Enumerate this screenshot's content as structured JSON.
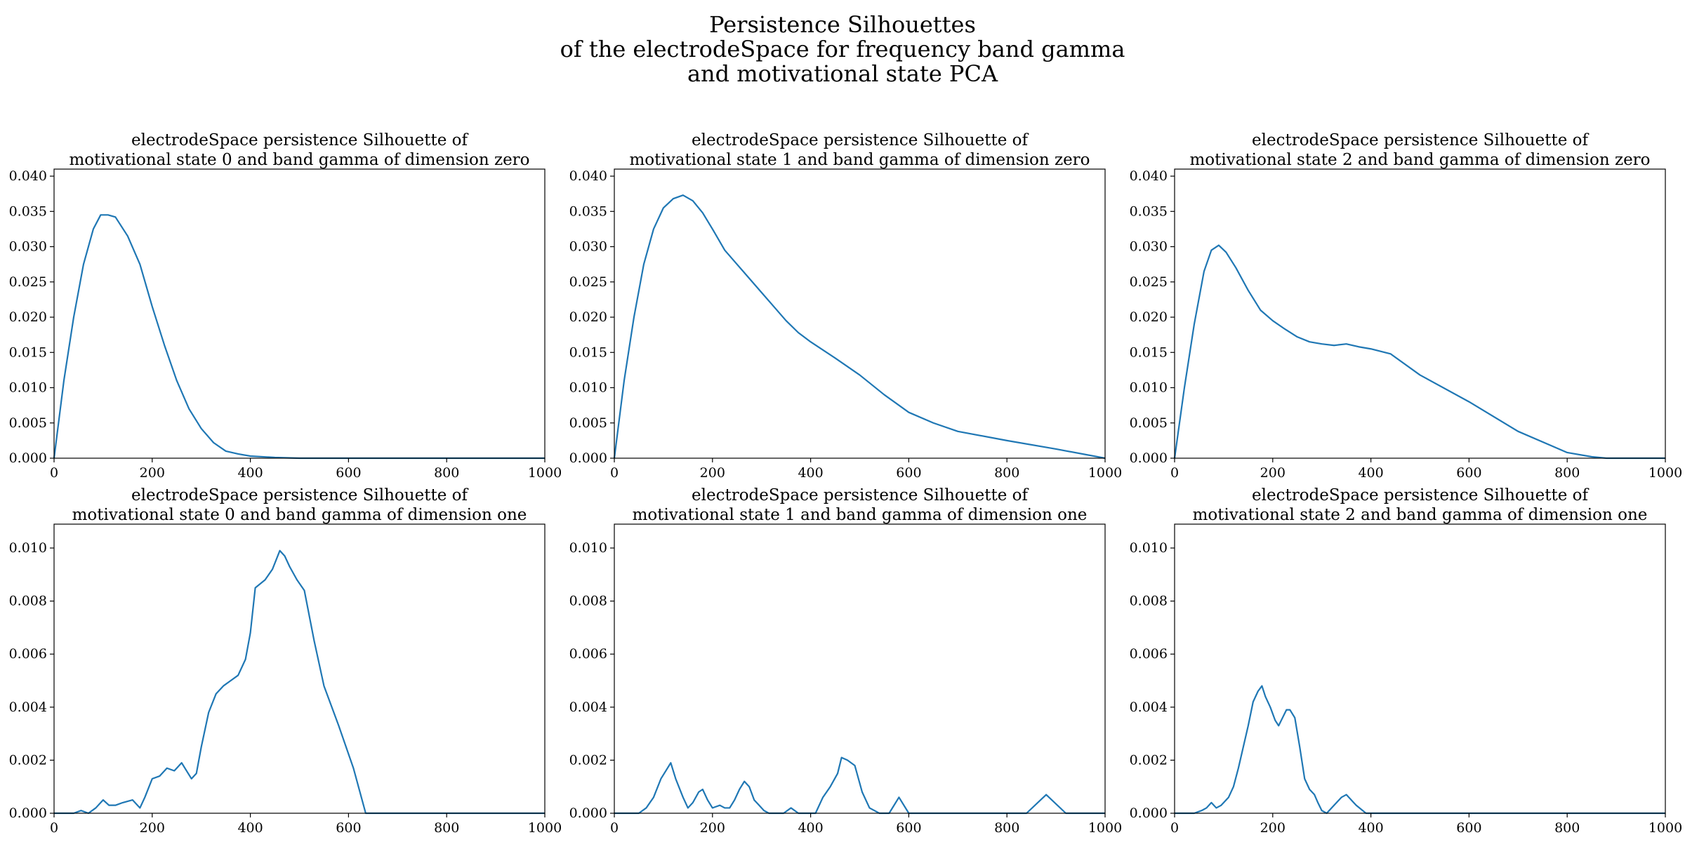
{
  "figure": {
    "suptitle_lines": [
      "Persistence Silhouettes",
      "of the electrodeSpace for frequency band gamma",
      "and motivational state PCA"
    ]
  },
  "colors": {
    "line": "#1f77b4",
    "axes": "#000000",
    "background": "#ffffff"
  },
  "chart_data": [
    {
      "type": "line",
      "title_lines": [
        "electrodeSpace persistence Silhouette of",
        "motivational state 0 and band gamma of dimension zero"
      ],
      "xlim": [
        0,
        1000
      ],
      "ylim": [
        0,
        0.041
      ],
      "xticks": [
        "0",
        "200",
        "400",
        "600",
        "800",
        "1000"
      ],
      "yticks": [
        "0.000",
        "0.005",
        "0.010",
        "0.015",
        "0.020",
        "0.025",
        "0.030",
        "0.035",
        "0.040"
      ],
      "grid": false,
      "series": [
        {
          "x": [
            0,
            20,
            40,
            60,
            80,
            95,
            110,
            125,
            150,
            175,
            200,
            225,
            250,
            275,
            300,
            325,
            350,
            375,
            400,
            450,
            500,
            600,
            800,
            1000
          ],
          "y": [
            0.0,
            0.011,
            0.02,
            0.0275,
            0.0325,
            0.0345,
            0.0345,
            0.0342,
            0.0315,
            0.0275,
            0.0215,
            0.016,
            0.011,
            0.007,
            0.0042,
            0.0022,
            0.001,
            0.0006,
            0.0003,
            0.0001,
            0.0,
            0.0,
            0.0,
            0.0
          ]
        }
      ]
    },
    {
      "type": "line",
      "title_lines": [
        "electrodeSpace persistence Silhouette of",
        "motivational state 1 and band gamma of dimension zero"
      ],
      "xlim": [
        0,
        1000
      ],
      "ylim": [
        0,
        0.041
      ],
      "xticks": [
        "0",
        "200",
        "400",
        "600",
        "800",
        "1000"
      ],
      "yticks": [
        "0.000",
        "0.005",
        "0.010",
        "0.015",
        "0.020",
        "0.025",
        "0.030",
        "0.035",
        "0.040"
      ],
      "grid": false,
      "series": [
        {
          "x": [
            0,
            20,
            40,
            60,
            80,
            100,
            120,
            140,
            160,
            180,
            200,
            225,
            250,
            275,
            300,
            325,
            350,
            375,
            400,
            450,
            500,
            550,
            600,
            650,
            700,
            800,
            900,
            1000
          ],
          "y": [
            0.0,
            0.011,
            0.02,
            0.0275,
            0.0325,
            0.0355,
            0.0368,
            0.0373,
            0.0365,
            0.0348,
            0.0325,
            0.0295,
            0.0275,
            0.0255,
            0.0235,
            0.0215,
            0.0195,
            0.0178,
            0.0165,
            0.0142,
            0.0118,
            0.009,
            0.0065,
            0.005,
            0.0038,
            0.0025,
            0.0013,
            0.0
          ]
        }
      ]
    },
    {
      "type": "line",
      "title_lines": [
        "electrodeSpace persistence Silhouette of",
        "motivational state 2 and band gamma of dimension zero"
      ],
      "xlim": [
        0,
        1000
      ],
      "ylim": [
        0,
        0.041
      ],
      "xticks": [
        "0",
        "200",
        "400",
        "600",
        "800",
        "1000"
      ],
      "yticks": [
        "0.000",
        "0.005",
        "0.010",
        "0.015",
        "0.020",
        "0.025",
        "0.030",
        "0.035",
        "0.040"
      ],
      "grid": false,
      "series": [
        {
          "x": [
            0,
            20,
            40,
            60,
            75,
            90,
            105,
            125,
            150,
            175,
            200,
            225,
            250,
            275,
            300,
            325,
            350,
            375,
            400,
            440,
            500,
            600,
            700,
            800,
            850,
            880,
            1000
          ],
          "y": [
            0.0,
            0.01,
            0.019,
            0.0265,
            0.0295,
            0.0302,
            0.0292,
            0.027,
            0.0238,
            0.021,
            0.0195,
            0.0183,
            0.0172,
            0.0165,
            0.0162,
            0.016,
            0.0162,
            0.0158,
            0.0155,
            0.0148,
            0.0118,
            0.008,
            0.0038,
            0.0008,
            0.0002,
            0.0,
            0.0
          ]
        }
      ]
    },
    {
      "type": "line",
      "title_lines": [
        "electrodeSpace persistence Silhouette of",
        "motivational state 0 and band gamma of dimension one"
      ],
      "xlim": [
        0,
        1000
      ],
      "ylim": [
        0,
        0.0109
      ],
      "xticks": [
        "0",
        "200",
        "400",
        "600",
        "800",
        "1000"
      ],
      "yticks": [
        "0.000",
        "0.002",
        "0.004",
        "0.006",
        "0.008",
        "0.010"
      ],
      "grid": false,
      "series": [
        {
          "x": [
            0,
            40,
            55,
            70,
            85,
            100,
            112,
            125,
            140,
            160,
            175,
            185,
            200,
            215,
            230,
            245,
            260,
            270,
            280,
            290,
            300,
            315,
            330,
            345,
            360,
            375,
            390,
            400,
            410,
            430,
            445,
            460,
            470,
            480,
            495,
            510,
            530,
            550,
            580,
            610,
            635,
            650,
            700,
            800,
            1000
          ],
          "y": [
            0.0,
            0.0,
            0.0001,
            0.0,
            0.0002,
            0.0005,
            0.0003,
            0.0003,
            0.0004,
            0.0005,
            0.0002,
            0.0006,
            0.0013,
            0.0014,
            0.0017,
            0.0016,
            0.0019,
            0.0016,
            0.0013,
            0.0015,
            0.0025,
            0.0038,
            0.0045,
            0.0048,
            0.005,
            0.0052,
            0.0058,
            0.0068,
            0.0085,
            0.0088,
            0.0092,
            0.0099,
            0.0097,
            0.0093,
            0.0088,
            0.0084,
            0.0065,
            0.0048,
            0.0033,
            0.0017,
            0.0,
            0.0,
            0.0,
            0.0,
            0.0
          ]
        }
      ]
    },
    {
      "type": "line",
      "title_lines": [
        "electrodeSpace persistence Silhouette of",
        "motivational state 1 and band gamma of dimension one"
      ],
      "xlim": [
        0,
        1000
      ],
      "ylim": [
        0,
        0.0109
      ],
      "xticks": [
        "0",
        "200",
        "400",
        "600",
        "800",
        "1000"
      ],
      "yticks": [
        "0.000",
        "0.002",
        "0.004",
        "0.006",
        "0.008",
        "0.010"
      ],
      "grid": false,
      "series": [
        {
          "x": [
            0,
            50,
            65,
            80,
            95,
            105,
            115,
            125,
            140,
            150,
            160,
            172,
            180,
            190,
            200,
            215,
            225,
            235,
            245,
            255,
            265,
            275,
            285,
            295,
            305,
            315,
            330,
            345,
            360,
            375,
            390,
            410,
            425,
            440,
            455,
            463,
            475,
            490,
            505,
            520,
            540,
            560,
            580,
            600,
            615,
            800,
            840,
            880,
            920,
            1000
          ],
          "y": [
            0.0,
            0.0,
            0.0002,
            0.0006,
            0.0013,
            0.0016,
            0.0019,
            0.0013,
            0.0006,
            0.0002,
            0.0004,
            0.0008,
            0.0009,
            0.0005,
            0.0002,
            0.0003,
            0.0002,
            0.0002,
            0.0005,
            0.0009,
            0.0012,
            0.001,
            0.0005,
            0.0003,
            0.0001,
            0.0,
            0.0,
            0.0,
            0.0002,
            0.0,
            0.0,
            0.0,
            0.0006,
            0.001,
            0.0015,
            0.0021,
            0.002,
            0.0018,
            0.0008,
            0.0002,
            0.0,
            0.0,
            0.0006,
            0.0,
            0.0,
            0.0,
            0.0,
            0.0007,
            0.0,
            0.0
          ]
        }
      ]
    },
    {
      "type": "line",
      "title_lines": [
        "electrodeSpace persistence Silhouette of",
        "motivational state 2 and band gamma of dimension one"
      ],
      "xlim": [
        0,
        1000
      ],
      "ylim": [
        0,
        0.0109
      ],
      "xticks": [
        "0",
        "200",
        "400",
        "600",
        "800",
        "1000"
      ],
      "yticks": [
        "0.000",
        "0.002",
        "0.004",
        "0.006",
        "0.008",
        "0.010"
      ],
      "grid": false,
      "series": [
        {
          "x": [
            0,
            40,
            55,
            65,
            75,
            85,
            95,
            110,
            120,
            130,
            140,
            150,
            160,
            170,
            178,
            185,
            195,
            205,
            212,
            220,
            228,
            235,
            245,
            255,
            265,
            275,
            285,
            292,
            300,
            310,
            325,
            340,
            350,
            370,
            390,
            460,
            480,
            1000
          ],
          "y": [
            0.0,
            0.0,
            0.0001,
            0.0002,
            0.0004,
            0.0002,
            0.0003,
            0.0006,
            0.001,
            0.0017,
            0.0025,
            0.0033,
            0.0042,
            0.0046,
            0.0048,
            0.0044,
            0.004,
            0.0035,
            0.0033,
            0.0036,
            0.0039,
            0.0039,
            0.0036,
            0.0025,
            0.0013,
            0.0009,
            0.0007,
            0.0004,
            0.0001,
            0.0,
            0.0003,
            0.0006,
            0.0007,
            0.0003,
            0.0,
            0.0,
            0.0,
            0.0
          ]
        }
      ]
    }
  ]
}
